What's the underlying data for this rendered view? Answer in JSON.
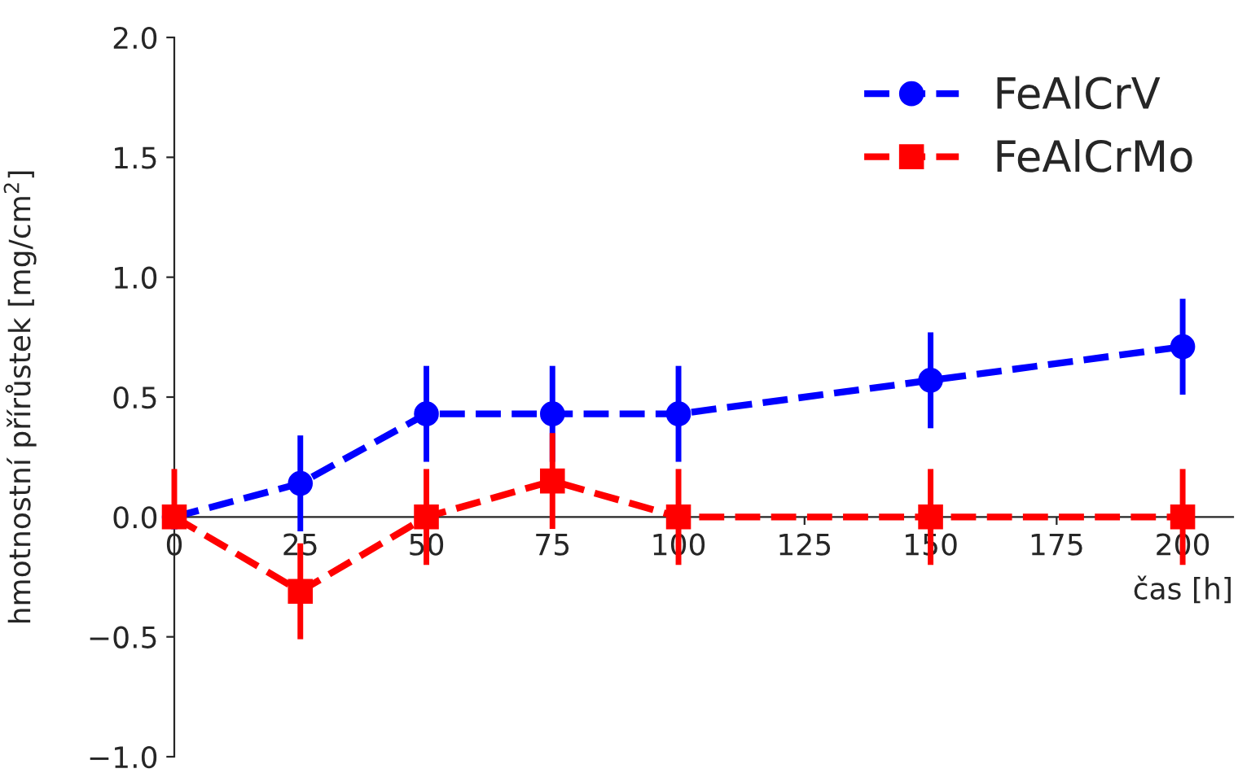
{
  "chart_data": {
    "type": "line",
    "xlabel": "čas [h]",
    "ylabel": "hmotnostní přírůstek [mg/cm$^{2}$]",
    "x": [
      0,
      25,
      50,
      75,
      100,
      150,
      200
    ],
    "series": [
      {
        "name": "FeAlCrV",
        "color": "#0000ff",
        "marker": "circle",
        "line_style": "dashed",
        "values": [
          0,
          0.14,
          0.43,
          0.43,
          0.43,
          0.57,
          0.71
        ],
        "errors": [
          null,
          0.2,
          0.2,
          0.2,
          0.2,
          0.2,
          0.2
        ]
      },
      {
        "name": "FeAlCrMo",
        "color": "#ff0000",
        "marker": "square",
        "line_style": "dashed",
        "values": [
          0,
          -0.31,
          0,
          0.15,
          0,
          0,
          0
        ],
        "errors": [
          [
            0,
            0.2
          ],
          0.2,
          0.2,
          0.2,
          0.2,
          0.2,
          0.2
        ]
      }
    ],
    "xlim": [
      0,
      210
    ],
    "xticks": [
      0,
      25,
      50,
      75,
      100,
      125,
      150,
      175,
      200
    ],
    "ylim": [
      -1,
      2
    ],
    "yticks": [
      {
        "value": -1,
        "label": "−1.0"
      },
      {
        "value": -0.5,
        "label": "−0.5"
      },
      {
        "value": 0,
        "label": "0.0"
      },
      {
        "value": 0.5,
        "label": "0.5"
      },
      {
        "value": 1,
        "label": "1.0"
      },
      {
        "value": 1.5,
        "label": "1.5"
      },
      {
        "value": 2,
        "label": "2.0"
      }
    ],
    "grid": false,
    "legend": "top right"
  }
}
